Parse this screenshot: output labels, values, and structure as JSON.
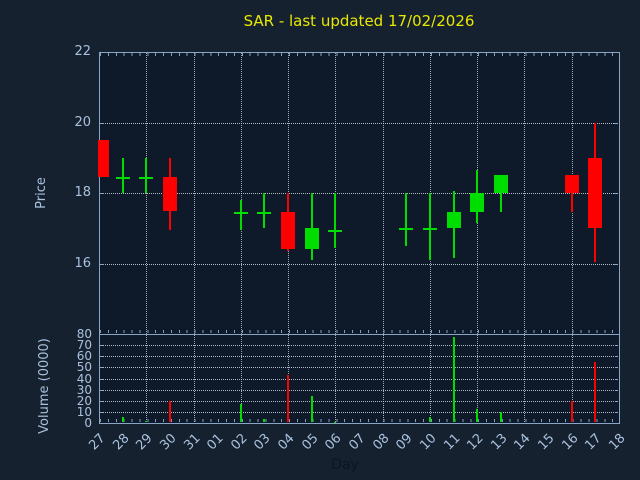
{
  "chart_data": {
    "type": "candlestick",
    "title": "SAR - last updated 17/02/2026",
    "xlabel": "Day",
    "price_ylabel": "Price",
    "volume_ylabel": "Volume (0000)",
    "price_ylim": [
      14,
      22
    ],
    "price_yticks": [
      16,
      18,
      20,
      22
    ],
    "price_gridlines": [
      16,
      18,
      20
    ],
    "volume_ylim": [
      0,
      80
    ],
    "volume_yticks": [
      0,
      10,
      20,
      30,
      40,
      50,
      60,
      70,
      80
    ],
    "volume_gridlines": [
      10,
      20,
      30,
      40,
      50,
      60,
      70
    ],
    "x_labels": [
      "27",
      "28",
      "29",
      "30",
      "31",
      "01",
      "02",
      "03",
      "04",
      "05",
      "06",
      "07",
      "08",
      "09",
      "10",
      "11",
      "12",
      "13",
      "14",
      "15",
      "16",
      "17",
      "18"
    ],
    "grid_days": [
      "29",
      "31",
      "02",
      "04",
      "06",
      "08",
      "10",
      "12",
      "14",
      "16"
    ],
    "legend_position": "none",
    "grid": true,
    "candles": [
      {
        "day": "27",
        "open": 19.5,
        "high": 19.5,
        "low": 18.45,
        "close": 18.45,
        "volume": 0,
        "clipped_left": true
      },
      {
        "day": "28",
        "open": 18.45,
        "high": 19.0,
        "low": 18.0,
        "close": 18.45,
        "volume": 5
      },
      {
        "day": "29",
        "open": 18.45,
        "high": 19.0,
        "low": 18.0,
        "close": 18.45,
        "volume": 2
      },
      {
        "day": "30",
        "open": 18.45,
        "high": 19.0,
        "low": 16.95,
        "close": 17.5,
        "volume": 20
      },
      {
        "day": "02",
        "open": 17.45,
        "high": 17.8,
        "low": 16.95,
        "close": 17.45,
        "volume": 17
      },
      {
        "day": "03",
        "open": 17.45,
        "high": 18.0,
        "low": 17.0,
        "close": 17.45,
        "volume": 4
      },
      {
        "day": "04",
        "open": 17.45,
        "high": 18.0,
        "low": 16.35,
        "close": 16.4,
        "volume": 43
      },
      {
        "day": "05",
        "open": 16.4,
        "high": 18.0,
        "low": 16.1,
        "close": 17.0,
        "volume": 24
      },
      {
        "day": "06",
        "open": 16.95,
        "high": 18.0,
        "low": 16.45,
        "close": 16.95,
        "volume": 1
      },
      {
        "day": "09",
        "open": 17.0,
        "high": 18.0,
        "low": 16.5,
        "close": 17.0,
        "volume": 0
      },
      {
        "day": "10",
        "open": 17.0,
        "high": 18.0,
        "low": 16.1,
        "close": 17.0,
        "volume": 5
      },
      {
        "day": "11",
        "open": 17.0,
        "high": 18.05,
        "low": 16.15,
        "close": 17.45,
        "volume": 77
      },
      {
        "day": "12",
        "open": 17.45,
        "high": 18.65,
        "low": 17.15,
        "close": 18.0,
        "volume": 13
      },
      {
        "day": "13",
        "open": 18.0,
        "high": 18.5,
        "low": 17.45,
        "close": 18.5,
        "volume": 10
      },
      {
        "day": "16",
        "open": 18.5,
        "high": 18.5,
        "low": 17.45,
        "close": 18.0,
        "volume": 20
      },
      {
        "day": "17",
        "open": 19.0,
        "high": 20.0,
        "low": 16.05,
        "close": 17.0,
        "volume": 55
      }
    ],
    "colors": {
      "up": "#00dd00",
      "down": "#ff0000",
      "title": "#e8e800",
      "axis_text": "#a9c1de",
      "spine": "#8aa6c6",
      "figure_bg": "#16212f",
      "axes_bg": "#0e1a29",
      "grid": "#d0d8e3",
      "xlabel_text": "#0b1522"
    }
  }
}
